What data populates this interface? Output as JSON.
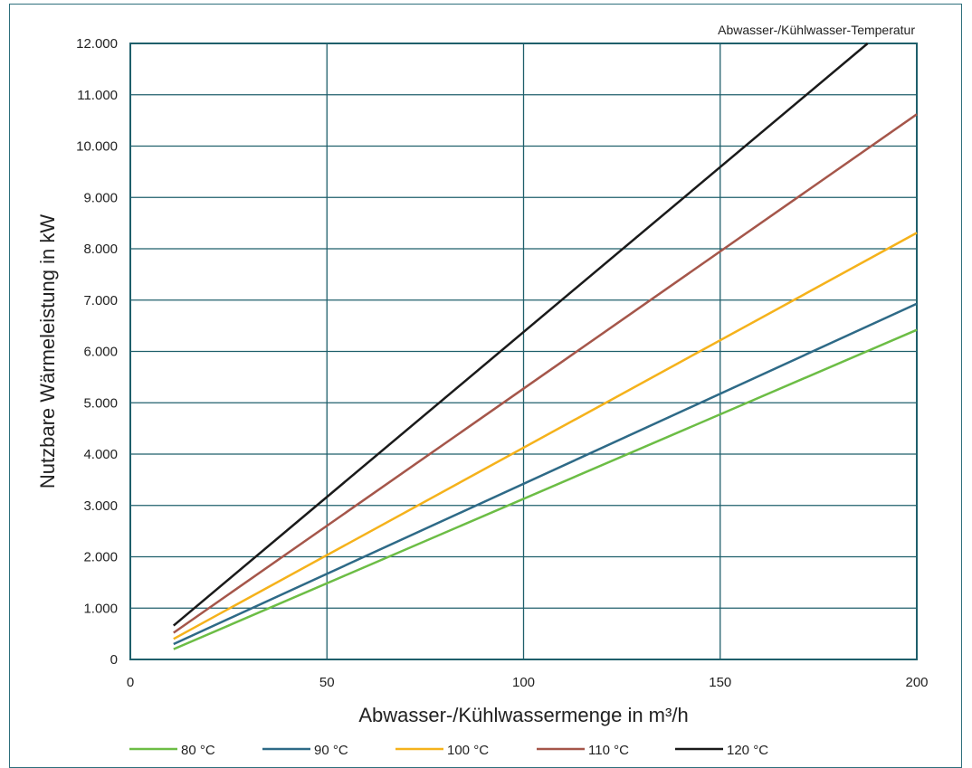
{
  "chart_data": {
    "type": "line",
    "annotation": "Abwasser-/Kühlwasser-Temperatur",
    "xlabel": "Abwasser-/Kühlwassermenge in m³/h",
    "ylabel": "Nutzbare Wärmeleistung in kW",
    "xlim": [
      0,
      200
    ],
    "ylim": [
      0,
      12000
    ],
    "x_ticks": [
      0,
      50,
      100,
      150,
      200
    ],
    "x_tick_labels": [
      "0",
      "50",
      "100",
      "150",
      "200"
    ],
    "y_ticks": [
      0,
      1000,
      2000,
      3000,
      4000,
      5000,
      6000,
      7000,
      8000,
      9000,
      10000,
      11000,
      12000
    ],
    "y_tick_labels": [
      "0",
      "1.000",
      "2.000",
      "3.000",
      "4.000",
      "5.000",
      "6.000",
      "7.000",
      "8.000",
      "9.000",
      "10.000",
      "11.000",
      "12.000"
    ],
    "grid": true,
    "legend_position": "bottom",
    "series": [
      {
        "name": "80 °C",
        "color": "#6cbd45",
        "x": [
          11,
          200
        ],
        "y": [
          200,
          6420
        ]
      },
      {
        "name": "90 °C",
        "color": "#2e6a87",
        "x": [
          11,
          200
        ],
        "y": [
          300,
          6930
        ]
      },
      {
        "name": "100 °C",
        "color": "#f5b21b",
        "x": [
          11,
          200
        ],
        "y": [
          400,
          8310
        ]
      },
      {
        "name": "110 °C",
        "color": "#a5564a",
        "x": [
          11,
          200
        ],
        "y": [
          520,
          10620
        ]
      },
      {
        "name": "120 °C",
        "color": "#1a1a1a",
        "x": [
          11,
          187.5
        ],
        "y": [
          660,
          12000
        ]
      }
    ]
  },
  "colors": {
    "frame": "#2e6f7c",
    "grid": "#1f5f6b"
  }
}
